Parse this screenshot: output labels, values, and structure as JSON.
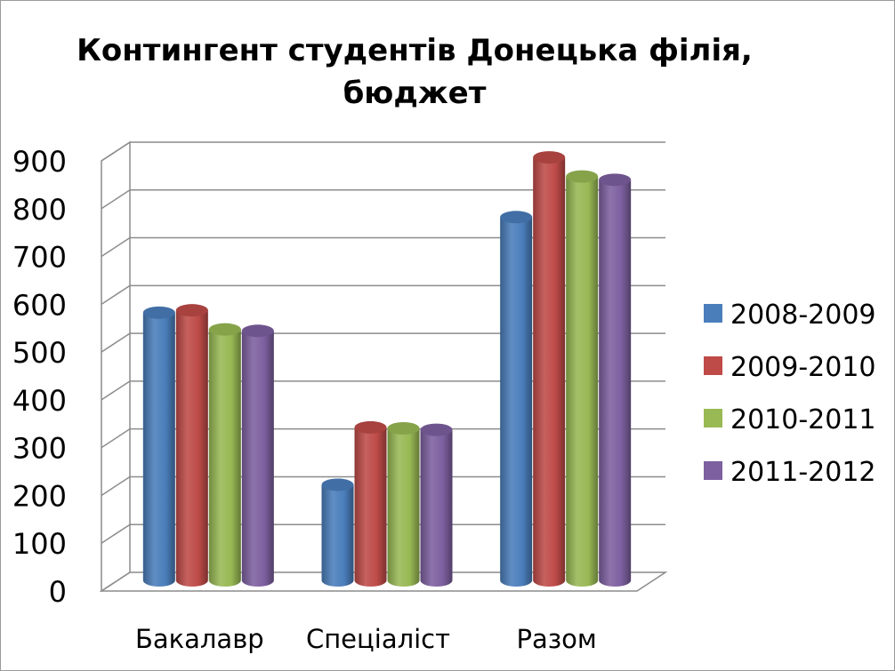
{
  "chart_data": {
    "type": "bar",
    "title_line1": "Контингент студентів Донецька філія,",
    "title_line2": "бюджет",
    "categories": [
      "Бакалавр",
      "Спеціаліст",
      "Разом"
    ],
    "series": [
      {
        "name": "2008-2009",
        "color": "#4a7ebb",
        "values": [
          560,
          200,
          760
        ]
      },
      {
        "name": "2009-2010",
        "color": "#be4b48",
        "values": [
          565,
          320,
          885
        ]
      },
      {
        "name": "2010-2011",
        "color": "#98b954",
        "values": [
          525,
          318,
          845
        ]
      },
      {
        "name": "2011-2012",
        "color": "#7d60a0",
        "values": [
          522,
          315,
          838
        ]
      }
    ],
    "y_ticks": [
      "0",
      "100",
      "200",
      "300",
      "400",
      "500",
      "600",
      "700",
      "800",
      "900"
    ],
    "ylim": [
      0,
      900
    ],
    "grid": true,
    "legend_position": "right"
  }
}
